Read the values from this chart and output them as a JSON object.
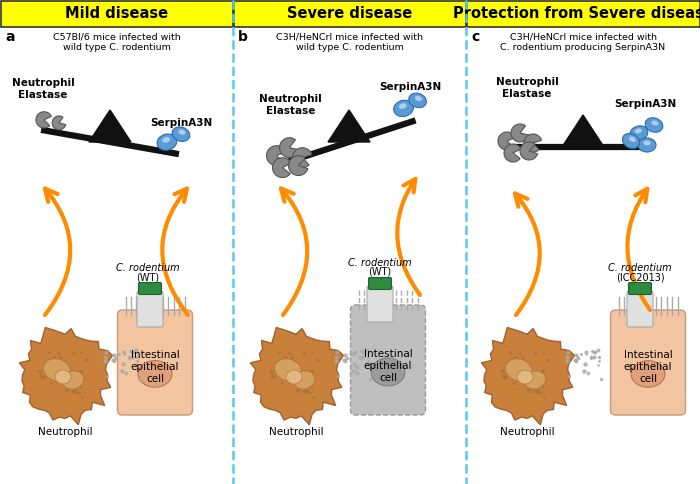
{
  "panel_titles": [
    "Mild disease",
    "Severe disease",
    "Protection from Severe disease"
  ],
  "panel_labels": [
    "a",
    "b",
    "c"
  ],
  "panel_subtitles": [
    "C57Bl/6 mice infected with\nwild type C. rodentium",
    "C3H/HeNCrl mice infected with\nwild type C. rodentium",
    "C3H/HeNCrl mice infected with\nC. rodentium producing SerpinA3N"
  ],
  "bacteria_labels": [
    "C. rodentium\n(WT)",
    "C. rodentium\n(WT)",
    "C. rodentium\n(ICC2013)"
  ],
  "header_bg": "#FFFF00",
  "divider_color": "#5BC8F0",
  "arrow_color": "#FF8C00",
  "neutrophil_fill": "#C8803A",
  "neutrophil_inner": "#D4A870",
  "epithelial_fill_healthy": "#F2C4A0",
  "epithelial_fill_severe": "#BFBFBF",
  "epithelial_nucleus_healthy": "#E0A07A",
  "epithelial_nucleus_severe": "#9A9A9A",
  "bacteria_body_color": "#E0E0E0",
  "bacteria_cap_color": "#2E8B40",
  "seesaw_color": "#111111",
  "serpin_color": "#5B9BD5",
  "elastase_color": "#888888",
  "fig_width": 7.0,
  "fig_height": 4.84,
  "dpi": 100
}
